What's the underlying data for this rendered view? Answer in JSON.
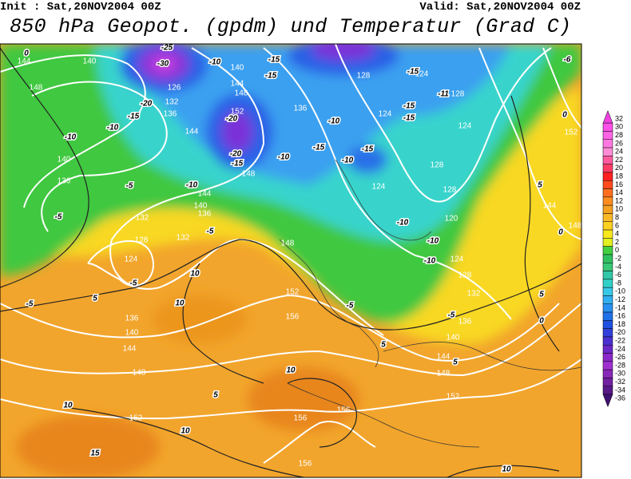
{
  "header": {
    "init": "Init : Sat,20NOV2004 00Z",
    "valid": "Valid: Sat,20NOV2004 00Z",
    "title": "850 hPa Geopot. (gpdm) und Temperatur (Grad C)"
  },
  "colorbar": {
    "values": [
      32,
      30,
      28,
      26,
      24,
      22,
      20,
      18,
      16,
      14,
      12,
      10,
      8,
      6,
      4,
      2,
      0,
      -2,
      -4,
      -6,
      -8,
      -10,
      -12,
      -14,
      -16,
      -18,
      -20,
      -22,
      -24,
      -26,
      -28,
      -30,
      -32,
      -34,
      -36
    ],
    "colors": [
      "#f040e0",
      "#ff50e8",
      "#ff64e6",
      "#ff78e0",
      "#ff8cd6",
      "#ff5aa0",
      "#ff3c64",
      "#ff2020",
      "#ff4a20",
      "#ff6e1e",
      "#ff8c1e",
      "#f4a020",
      "#f8b828",
      "#fcd020",
      "#f8e81c",
      "#e0f020",
      "#40d040",
      "#30c060",
      "#38c878",
      "#30c8a8",
      "#30d0c8",
      "#38c8e8",
      "#30b0f0",
      "#2890f0",
      "#2070e8",
      "#2050e0",
      "#3040d8",
      "#4a30d0",
      "#6a28c8",
      "#8a28c8",
      "#a030d0",
      "#8828b8",
      "#7020a0",
      "#581888",
      "#401070"
    ]
  },
  "geopotential_labels": [
    144,
    140,
    148,
    126,
    132,
    136,
    140,
    144,
    148,
    152,
    136,
    128,
    124,
    128,
    124,
    124,
    144,
    140,
    136,
    148,
    144,
    140,
    136,
    128,
    124,
    128,
    120,
    132,
    128,
    132,
    124,
    124,
    128,
    132,
    152,
    156,
    136,
    140,
    144,
    148,
    152,
    136,
    140,
    144,
    148,
    152,
    156,
    156,
    156,
    144,
    148,
    152,
    148
  ],
  "temperature_labels": [
    -25,
    -30,
    -10,
    -15,
    -15,
    -15,
    -15,
    -15,
    -11,
    -6,
    0,
    -20,
    -15,
    -10,
    -10,
    -20,
    -20,
    -15,
    -10,
    -15,
    -10,
    -15,
    -10,
    -5,
    -10,
    -5,
    5,
    -5,
    -10,
    -10,
    -10,
    0,
    -5,
    10,
    10,
    -5,
    5,
    5,
    0,
    -5,
    -5,
    5,
    5,
    10,
    5,
    10,
    10,
    15,
    10,
    0
  ]
}
